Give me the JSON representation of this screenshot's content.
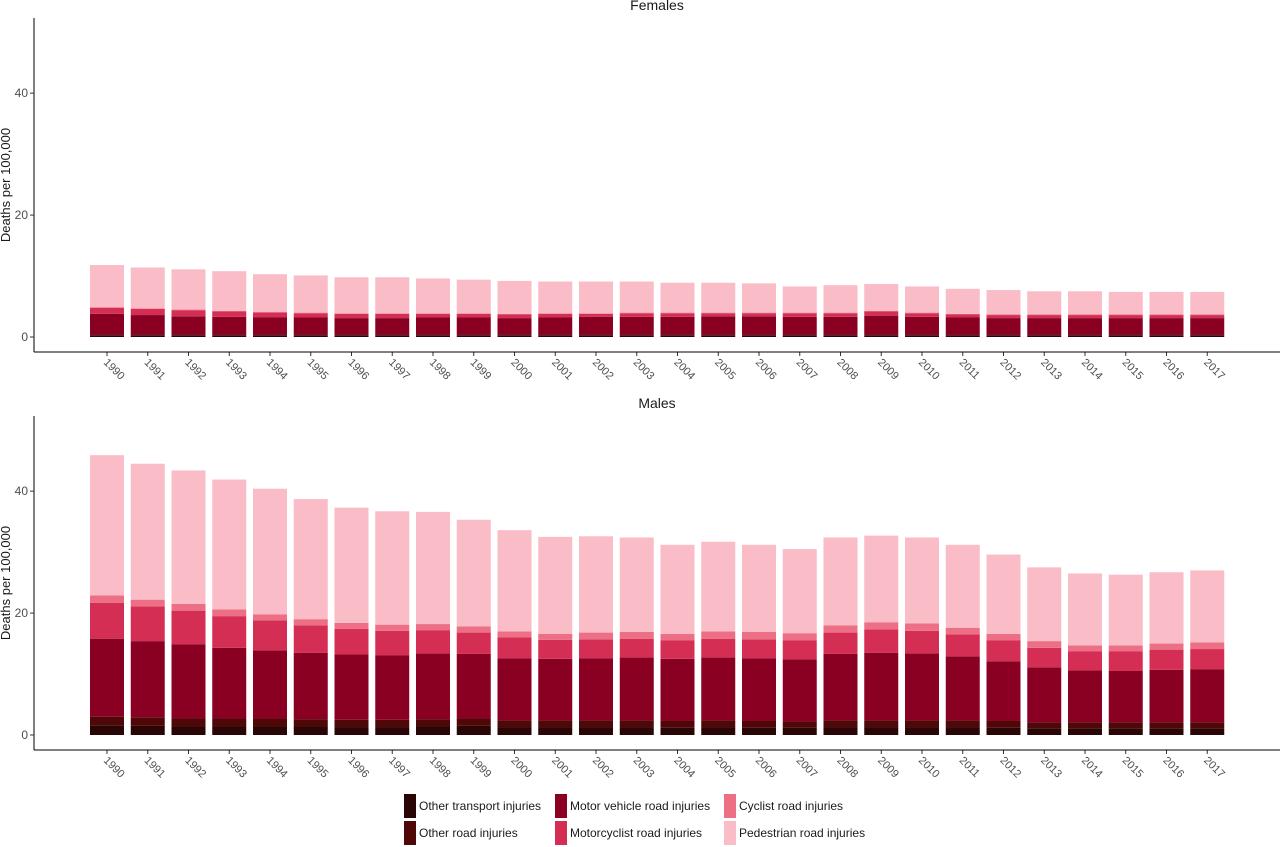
{
  "chart_data": [
    {
      "type": "bar",
      "stacked": true,
      "title": "Females",
      "ylabel": "Deaths per 100,000",
      "xlabel": "",
      "ylim": [
        0,
        52
      ],
      "yticks": [
        0,
        20,
        40
      ],
      "grid": false,
      "categories": [
        "1990",
        "1991",
        "1992",
        "1993",
        "1994",
        "1995",
        "1996",
        "1997",
        "1998",
        "1999",
        "2000",
        "2001",
        "2002",
        "2003",
        "2004",
        "2005",
        "2006",
        "2007",
        "2008",
        "2009",
        "2010",
        "2011",
        "2012",
        "2013",
        "2014",
        "2015",
        "2016",
        "2017"
      ],
      "series": [
        {
          "name": "Other transport injuries",
          "values": [
            0.2,
            0.2,
            0.2,
            0.2,
            0.2,
            0.2,
            0.2,
            0.2,
            0.2,
            0.2,
            0.2,
            0.2,
            0.2,
            0.2,
            0.2,
            0.2,
            0.2,
            0.2,
            0.2,
            0.2,
            0.2,
            0.2,
            0.2,
            0.2,
            0.2,
            0.2,
            0.2,
            0.2
          ]
        },
        {
          "name": "Other road injuries",
          "values": [
            0.2,
            0.2,
            0.2,
            0.2,
            0.2,
            0.2,
            0.2,
            0.2,
            0.2,
            0.2,
            0.2,
            0.2,
            0.2,
            0.2,
            0.2,
            0.2,
            0.2,
            0.2,
            0.2,
            0.2,
            0.2,
            0.2,
            0.2,
            0.2,
            0.2,
            0.2,
            0.2,
            0.2
          ]
        },
        {
          "name": "Motor vehicle road injuries",
          "values": [
            3.4,
            3.2,
            3.0,
            2.9,
            2.8,
            2.8,
            2.7,
            2.7,
            2.8,
            2.8,
            2.7,
            2.8,
            2.9,
            2.9,
            2.9,
            3.0,
            3.0,
            2.9,
            2.9,
            3.1,
            2.9,
            2.8,
            2.7,
            2.7,
            2.7,
            2.7,
            2.7,
            2.7
          ]
        },
        {
          "name": "Motorcyclist road injuries",
          "values": [
            1.0,
            1.0,
            1.0,
            0.9,
            0.8,
            0.7,
            0.7,
            0.7,
            0.6,
            0.6,
            0.6,
            0.6,
            0.5,
            0.6,
            0.6,
            0.5,
            0.5,
            0.6,
            0.6,
            0.7,
            0.6,
            0.5,
            0.5,
            0.5,
            0.5,
            0.5,
            0.5,
            0.5
          ]
        },
        {
          "name": "Cyclist road injuries",
          "values": [
            0.1,
            0.1,
            0.1,
            0.1,
            0.1,
            0.1,
            0.1,
            0.1,
            0.1,
            0.1,
            0.1,
            0.1,
            0.1,
            0.1,
            0.1,
            0.1,
            0.1,
            0.1,
            0.1,
            0.1,
            0.1,
            0.1,
            0.1,
            0.1,
            0.1,
            0.1,
            0.1,
            0.1
          ]
        },
        {
          "name": "Pedestrian road injuries",
          "values": [
            6.9,
            6.7,
            6.6,
            6.5,
            6.2,
            6.1,
            5.9,
            5.9,
            5.7,
            5.5,
            5.4,
            5.2,
            5.2,
            5.1,
            4.9,
            4.9,
            4.8,
            4.3,
            4.5,
            4.4,
            4.3,
            4.1,
            4.0,
            3.8,
            3.8,
            3.7,
            3.7,
            3.7
          ]
        }
      ]
    },
    {
      "type": "bar",
      "stacked": true,
      "title": "Males",
      "ylabel": "Deaths per 100,000",
      "xlabel": "",
      "ylim": [
        0,
        52
      ],
      "yticks": [
        0,
        20,
        40
      ],
      "grid": false,
      "categories": [
        "1990",
        "1991",
        "1992",
        "1993",
        "1994",
        "1995",
        "1996",
        "1997",
        "1998",
        "1999",
        "2000",
        "2001",
        "2002",
        "2003",
        "2004",
        "2005",
        "2006",
        "2007",
        "2008",
        "2009",
        "2010",
        "2011",
        "2012",
        "2013",
        "2014",
        "2015",
        "2016",
        "2017"
      ],
      "series": [
        {
          "name": "Other transport injuries",
          "values": [
            1.6,
            1.5,
            1.4,
            1.4,
            1.4,
            1.4,
            1.3,
            1.3,
            1.4,
            1.5,
            1.3,
            1.3,
            1.3,
            1.3,
            1.2,
            1.3,
            1.2,
            1.2,
            1.3,
            1.3,
            1.3,
            1.3,
            1.2,
            1.1,
            1.1,
            1.1,
            1.1,
            1.1
          ]
        },
        {
          "name": "Other road injuries",
          "values": [
            1.4,
            1.4,
            1.3,
            1.3,
            1.3,
            1.2,
            1.2,
            1.2,
            1.2,
            1.2,
            1.1,
            1.1,
            1.1,
            1.1,
            1.1,
            1.1,
            1.1,
            1.0,
            1.1,
            1.1,
            1.1,
            1.1,
            1.1,
            1.0,
            1.0,
            1.0,
            1.0,
            1.0
          ]
        },
        {
          "name": "Motor vehicle road injuries",
          "values": [
            12.8,
            12.5,
            12.2,
            11.6,
            11.2,
            10.9,
            10.7,
            10.6,
            10.8,
            10.6,
            10.2,
            10.1,
            10.2,
            10.3,
            10.2,
            10.3,
            10.3,
            10.2,
            10.9,
            11.1,
            11.0,
            10.5,
            9.8,
            9.0,
            8.5,
            8.4,
            8.6,
            8.7
          ]
        },
        {
          "name": "Motorcyclist road injuries",
          "values": [
            5.9,
            5.7,
            5.5,
            5.2,
            4.9,
            4.5,
            4.2,
            4.0,
            3.8,
            3.5,
            3.4,
            3.1,
            3.1,
            3.1,
            3.0,
            3.1,
            3.1,
            3.1,
            3.5,
            3.8,
            3.7,
            3.6,
            3.4,
            3.2,
            3.1,
            3.2,
            3.3,
            3.3
          ]
        },
        {
          "name": "Cyclist road injuries",
          "values": [
            1.2,
            1.1,
            1.1,
            1.1,
            1.0,
            1.0,
            1.0,
            1.0,
            1.0,
            1.0,
            1.0,
            1.0,
            1.1,
            1.1,
            1.1,
            1.2,
            1.2,
            1.2,
            1.2,
            1.2,
            1.2,
            1.1,
            1.1,
            1.1,
            1.0,
            1.0,
            1.0,
            1.1
          ]
        },
        {
          "name": "Pedestrian road injuries",
          "values": [
            23.0,
            22.3,
            21.9,
            21.3,
            20.6,
            19.7,
            18.9,
            18.6,
            18.4,
            17.5,
            16.6,
            15.9,
            15.8,
            15.5,
            14.6,
            14.7,
            14.3,
            13.8,
            14.4,
            14.2,
            14.1,
            13.6,
            13.0,
            12.1,
            11.8,
            11.6,
            11.7,
            11.8
          ]
        }
      ]
    }
  ],
  "legend": {
    "items": [
      {
        "label": "Other transport injuries",
        "color": "#2a0505"
      },
      {
        "label": "Other road injuries",
        "color": "#4f0708"
      },
      {
        "label": "Motor vehicle road injuries",
        "color": "#8a0022"
      },
      {
        "label": "Motorcyclist road injuries",
        "color": "#d52e54"
      },
      {
        "label": "Cyclist road injuries",
        "color": "#ec6f86"
      },
      {
        "label": "Pedestrian road injuries",
        "color": "#fabcc6"
      }
    ]
  }
}
